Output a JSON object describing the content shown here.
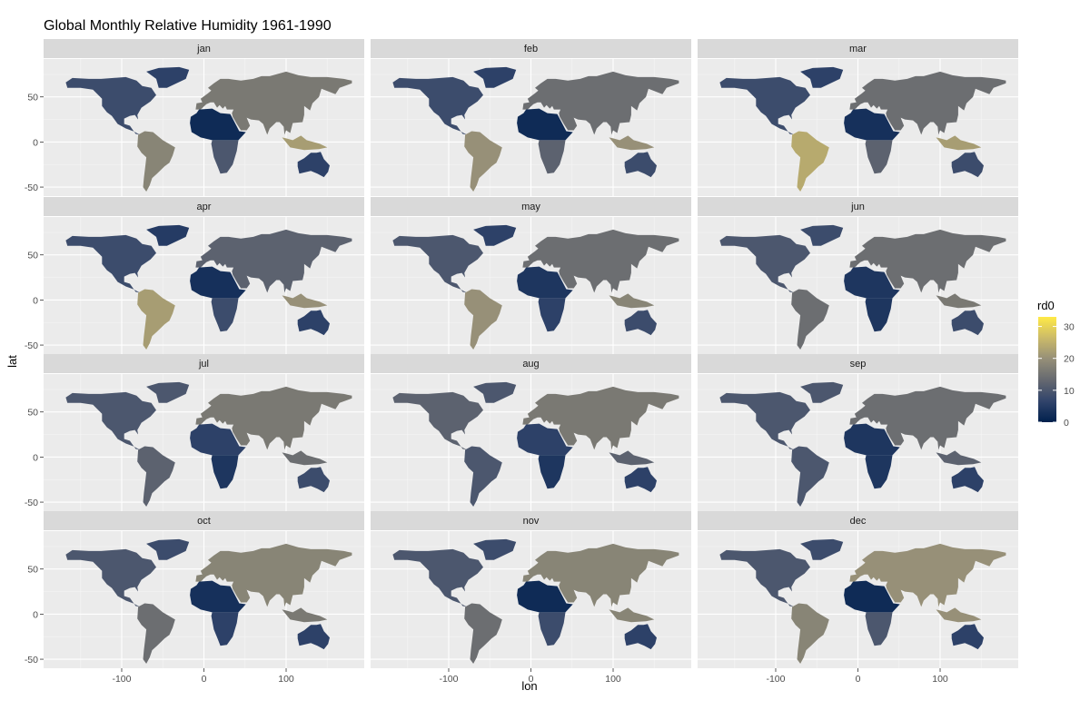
{
  "chart_data": {
    "type": "heatmap",
    "title": "Global Monthly Relative Humidity 1961-1990",
    "xlabel": "lon",
    "ylabel": "lat",
    "xlim": [
      -195,
      195
    ],
    "ylim": [
      -60,
      92
    ],
    "x_ticks": [
      -100,
      0,
      100
    ],
    "x_tick_labels": [
      "-100",
      "0",
      "100"
    ],
    "y_ticks": [
      -50,
      0,
      50
    ],
    "y_tick_labels": [
      "-50",
      "0",
      "50"
    ],
    "legend": {
      "title": "rd0",
      "range": [
        0,
        33
      ],
      "ticks": [
        0,
        10,
        20,
        30
      ],
      "tick_labels": [
        "0",
        "10",
        "20",
        "30"
      ],
      "colors": [
        "#00204d",
        "#31446b",
        "#666970",
        "#958f78",
        "#cbba69",
        "#ffea46"
      ]
    },
    "panels": [
      {
        "label": "jan",
        "regions": [
          {
            "name": "north-america",
            "value": 8
          },
          {
            "name": "greenland",
            "value": 6
          },
          {
            "name": "south-america",
            "value": 18
          },
          {
            "name": "eurasia",
            "value": 16
          },
          {
            "name": "north-africa",
            "value": 2
          },
          {
            "name": "south-africa",
            "value": 10
          },
          {
            "name": "australia",
            "value": 6
          },
          {
            "name": "indonesia",
            "value": 22
          }
        ]
      },
      {
        "label": "feb",
        "regions": [
          {
            "name": "north-america",
            "value": 8
          },
          {
            "name": "greenland",
            "value": 6
          },
          {
            "name": "south-america",
            "value": 20
          },
          {
            "name": "eurasia",
            "value": 14
          },
          {
            "name": "north-africa",
            "value": 2
          },
          {
            "name": "south-africa",
            "value": 12
          },
          {
            "name": "australia",
            "value": 8
          },
          {
            "name": "indonesia",
            "value": 20
          }
        ]
      },
      {
        "label": "mar",
        "regions": [
          {
            "name": "north-america",
            "value": 8
          },
          {
            "name": "greenland",
            "value": 6
          },
          {
            "name": "south-america",
            "value": 24
          },
          {
            "name": "eurasia",
            "value": 14
          },
          {
            "name": "north-africa",
            "value": 3
          },
          {
            "name": "south-africa",
            "value": 12
          },
          {
            "name": "australia",
            "value": 8
          },
          {
            "name": "indonesia",
            "value": 22
          }
        ]
      },
      {
        "label": "apr",
        "regions": [
          {
            "name": "north-america",
            "value": 8
          },
          {
            "name": "greenland",
            "value": 5
          },
          {
            "name": "south-america",
            "value": 22
          },
          {
            "name": "eurasia",
            "value": 12
          },
          {
            "name": "north-africa",
            "value": 3
          },
          {
            "name": "south-africa",
            "value": 8
          },
          {
            "name": "australia",
            "value": 6
          },
          {
            "name": "indonesia",
            "value": 20
          }
        ]
      },
      {
        "label": "may",
        "regions": [
          {
            "name": "north-america",
            "value": 10
          },
          {
            "name": "greenland",
            "value": 6
          },
          {
            "name": "south-america",
            "value": 20
          },
          {
            "name": "eurasia",
            "value": 14
          },
          {
            "name": "north-africa",
            "value": 4
          },
          {
            "name": "south-africa",
            "value": 6
          },
          {
            "name": "australia",
            "value": 8
          },
          {
            "name": "indonesia",
            "value": 18
          }
        ]
      },
      {
        "label": "jun",
        "regions": [
          {
            "name": "north-america",
            "value": 10
          },
          {
            "name": "greenland",
            "value": 8
          },
          {
            "name": "south-america",
            "value": 14
          },
          {
            "name": "eurasia",
            "value": 14
          },
          {
            "name": "north-africa",
            "value": 4
          },
          {
            "name": "south-africa",
            "value": 4
          },
          {
            "name": "australia",
            "value": 8
          },
          {
            "name": "indonesia",
            "value": 16
          }
        ]
      },
      {
        "label": "jul",
        "regions": [
          {
            "name": "north-america",
            "value": 10
          },
          {
            "name": "greenland",
            "value": 10
          },
          {
            "name": "south-america",
            "value": 12
          },
          {
            "name": "eurasia",
            "value": 16
          },
          {
            "name": "north-africa",
            "value": 6
          },
          {
            "name": "south-africa",
            "value": 4
          },
          {
            "name": "australia",
            "value": 8
          },
          {
            "name": "indonesia",
            "value": 14
          }
        ]
      },
      {
        "label": "aug",
        "regions": [
          {
            "name": "north-america",
            "value": 12
          },
          {
            "name": "greenland",
            "value": 10
          },
          {
            "name": "south-america",
            "value": 10
          },
          {
            "name": "eurasia",
            "value": 16
          },
          {
            "name": "north-africa",
            "value": 6
          },
          {
            "name": "south-africa",
            "value": 4
          },
          {
            "name": "australia",
            "value": 6
          },
          {
            "name": "indonesia",
            "value": 12
          }
        ]
      },
      {
        "label": "sep",
        "regions": [
          {
            "name": "north-america",
            "value": 10
          },
          {
            "name": "greenland",
            "value": 10
          },
          {
            "name": "south-america",
            "value": 10
          },
          {
            "name": "eurasia",
            "value": 14
          },
          {
            "name": "north-africa",
            "value": 4
          },
          {
            "name": "south-africa",
            "value": 4
          },
          {
            "name": "australia",
            "value": 6
          },
          {
            "name": "indonesia",
            "value": 12
          }
        ]
      },
      {
        "label": "oct",
        "regions": [
          {
            "name": "north-america",
            "value": 10
          },
          {
            "name": "greenland",
            "value": 8
          },
          {
            "name": "south-america",
            "value": 14
          },
          {
            "name": "eurasia",
            "value": 18
          },
          {
            "name": "north-africa",
            "value": 3
          },
          {
            "name": "south-africa",
            "value": 6
          },
          {
            "name": "australia",
            "value": 6
          },
          {
            "name": "indonesia",
            "value": 16
          }
        ]
      },
      {
        "label": "nov",
        "regions": [
          {
            "name": "north-america",
            "value": 10
          },
          {
            "name": "greenland",
            "value": 8
          },
          {
            "name": "south-america",
            "value": 14
          },
          {
            "name": "eurasia",
            "value": 18
          },
          {
            "name": "north-africa",
            "value": 2
          },
          {
            "name": "south-africa",
            "value": 8
          },
          {
            "name": "australia",
            "value": 6
          },
          {
            "name": "indonesia",
            "value": 18
          }
        ]
      },
      {
        "label": "dec",
        "regions": [
          {
            "name": "north-america",
            "value": 10
          },
          {
            "name": "greenland",
            "value": 8
          },
          {
            "name": "south-america",
            "value": 18
          },
          {
            "name": "eurasia",
            "value": 20
          },
          {
            "name": "north-africa",
            "value": 2
          },
          {
            "name": "south-africa",
            "value": 10
          },
          {
            "name": "australia",
            "value": 6
          },
          {
            "name": "indonesia",
            "value": 20
          }
        ]
      }
    ]
  }
}
